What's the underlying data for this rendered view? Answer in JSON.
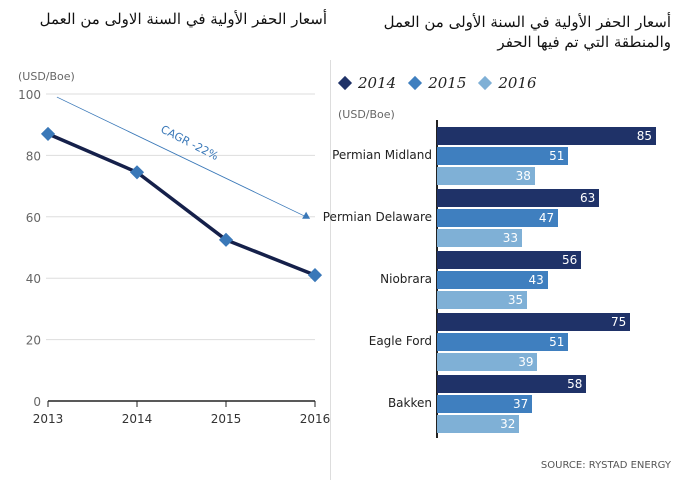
{
  "left": {
    "title": "أسعار الحفر الأولية في السنة الاولى من العمل"
  },
  "right": {
    "title_line1": "أسعار الحفر الأولية في السنة الأولى من العمل",
    "title_line2": "والمنطقة التي تم فيها الحفر"
  },
  "source": "SOURCE: RYSTAD ENERGY",
  "chart_data": [
    {
      "type": "line",
      "ylabel": "(USD/Boe)",
      "ylim": [
        0,
        100
      ],
      "yticks": [
        0,
        20,
        40,
        60,
        80,
        100
      ],
      "grid": true,
      "x": [
        "2013",
        "2014",
        "2015",
        "2016"
      ],
      "values": [
        87,
        74.5,
        52.5,
        41
      ],
      "color": "#15204a",
      "marker_color": "#3a78b8",
      "annotation": {
        "text": "CAGR -22%",
        "trend_from": [
          2013.1,
          99
        ],
        "trend_to": [
          2015.9,
          60
        ],
        "color": "#3a78b8"
      }
    },
    {
      "type": "bar",
      "orientation": "horizontal",
      "ylabel": "(USD/Boe)",
      "categories": [
        "Permian Midland",
        "Permian Delaware",
        "Niobrara",
        "Eagle Ford",
        "Bakken"
      ],
      "series": [
        {
          "name": "2014",
          "color": "#1f3268",
          "values": [
            85,
            63,
            56,
            75,
            58
          ]
        },
        {
          "name": "2015",
          "color": "#3f7fbf",
          "values": [
            51,
            47,
            43,
            51,
            37
          ]
        },
        {
          "name": "2016",
          "color": "#7fb0d6",
          "values": [
            38,
            33,
            35,
            39,
            32
          ]
        }
      ],
      "legend": "top-left"
    }
  ]
}
